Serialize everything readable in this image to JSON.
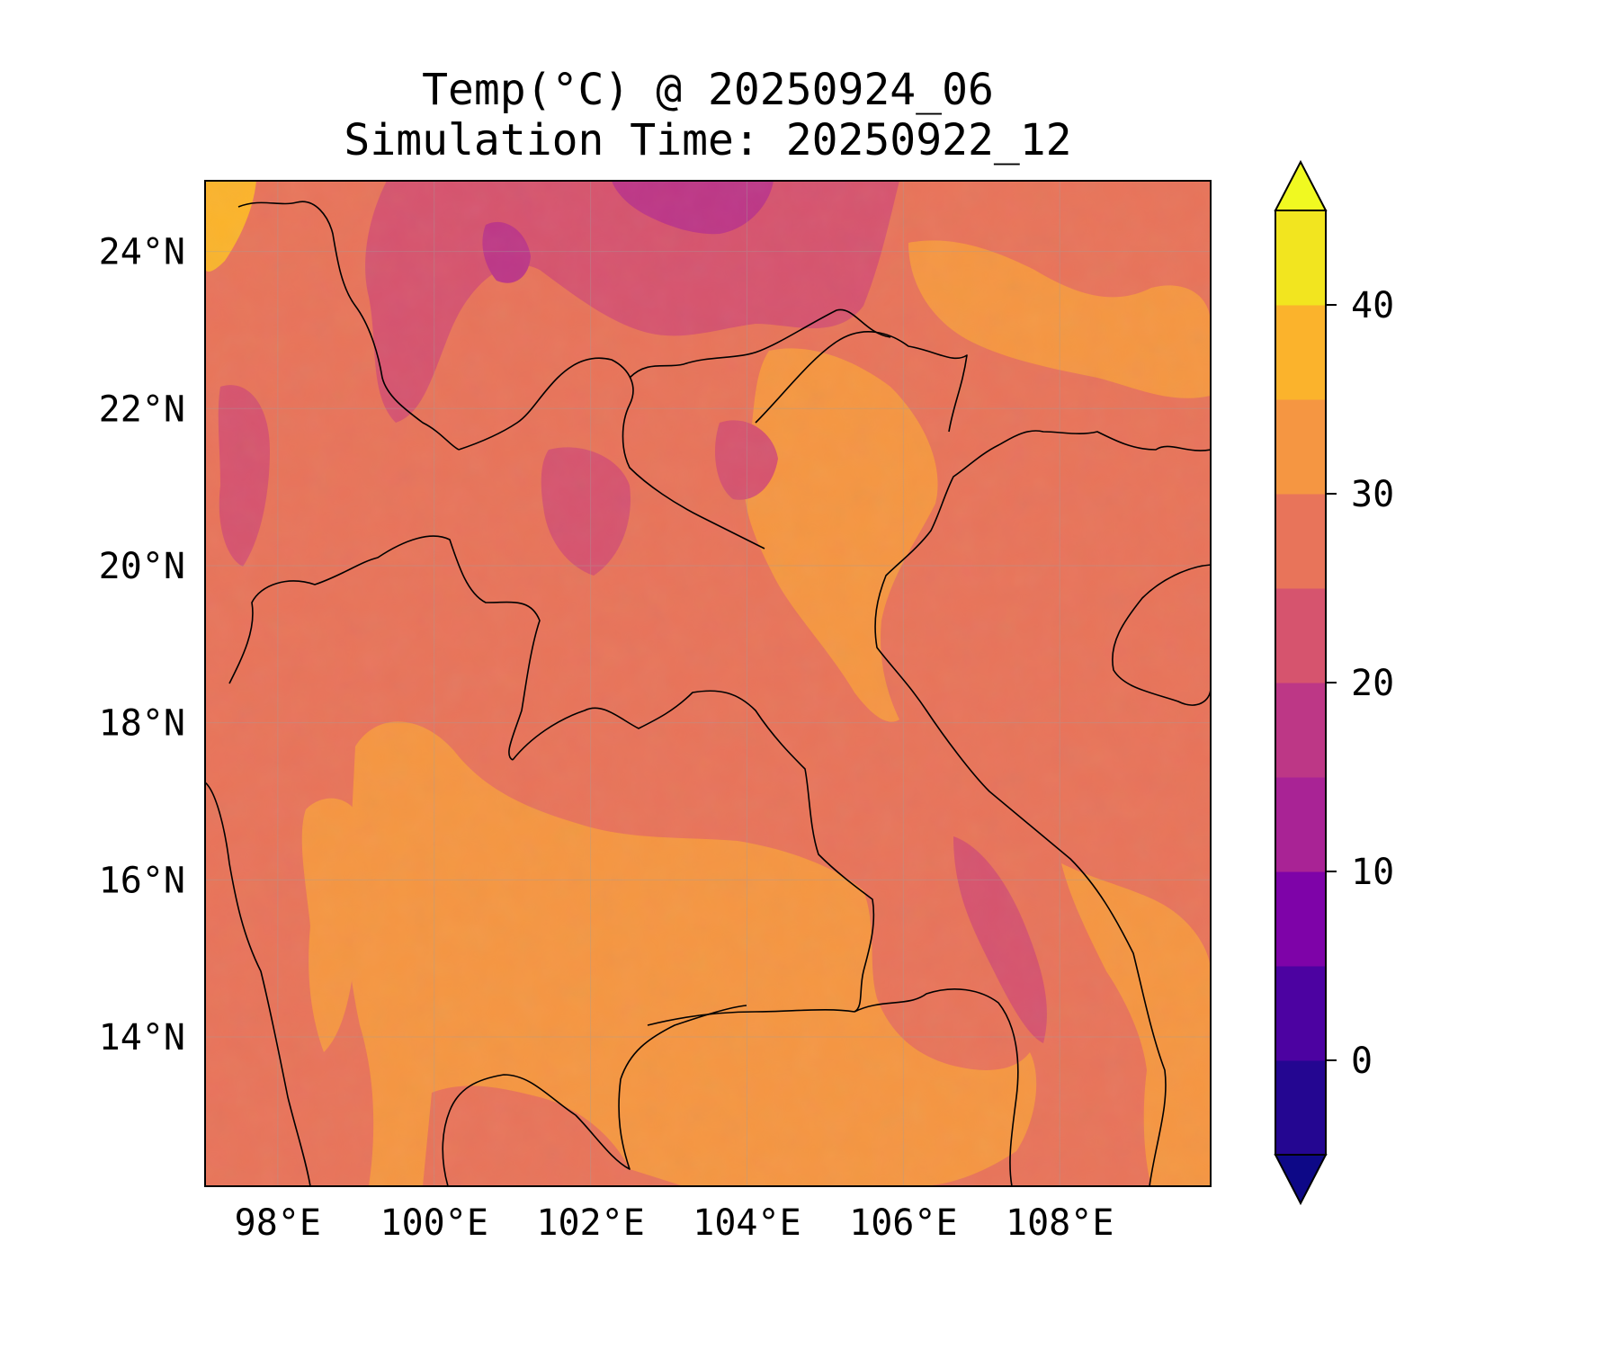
{
  "title": {
    "line1": "Temp(°C) @ 20250924_06",
    "line2": "Simulation Time: 20250922_12"
  },
  "map": {
    "type": "filled-contour",
    "variable": "Temp(°C)",
    "extent": {
      "lon_min": 97.07,
      "lon_max": 109.93,
      "lat_min": 12.1,
      "lat_max": 24.9
    },
    "gridlines": true,
    "longitude_ticks": [
      {
        "lon": 98,
        "label": "98°E"
      },
      {
        "lon": 100,
        "label": "100°E"
      },
      {
        "lon": 102,
        "label": "102°E"
      },
      {
        "lon": 104,
        "label": "104°E"
      },
      {
        "lon": 106,
        "label": "106°E"
      },
      {
        "lon": 108,
        "label": "108°E"
      }
    ],
    "latitude_ticks": [
      {
        "lat": 24,
        "label": "24°N"
      },
      {
        "lat": 22,
        "label": "22°N"
      },
      {
        "lat": 20,
        "label": "20°N"
      },
      {
        "lat": 18,
        "label": "18°N"
      },
      {
        "lat": 16,
        "label": "16°N"
      },
      {
        "lat": 14,
        "label": "14°N"
      }
    ],
    "dominant_colors": {
      "background_25_30": "#e8745a",
      "warm_30_35": "#f59642",
      "cool_20_25": "#d6546e",
      "cold_15_20": "#bd3786",
      "coast_line": "#000000"
    }
  },
  "colorbar": {
    "min": -5,
    "max": 45,
    "step": 5,
    "extend": "both",
    "ticks": [
      {
        "value": 0,
        "label": "0"
      },
      {
        "value": 10,
        "label": "10"
      },
      {
        "value": 20,
        "label": "20"
      },
      {
        "value": 30,
        "label": "30"
      },
      {
        "value": 40,
        "label": "40"
      }
    ],
    "bands": [
      {
        "from": -5,
        "to": 0,
        "color": "#240691"
      },
      {
        "from": 0,
        "to": 5,
        "color": "#4c02a1"
      },
      {
        "from": 5,
        "to": 10,
        "color": "#7e03a8"
      },
      {
        "from": 10,
        "to": 15,
        "color": "#a92395"
      },
      {
        "from": 15,
        "to": 20,
        "color": "#bd3786"
      },
      {
        "from": 20,
        "to": 25,
        "color": "#d6546e"
      },
      {
        "from": 25,
        "to": 30,
        "color": "#e8745a"
      },
      {
        "from": 30,
        "to": 35,
        "color": "#f59642"
      },
      {
        "from": 35,
        "to": 40,
        "color": "#fbb32c"
      },
      {
        "from": 40,
        "to": 45,
        "color": "#f2e51f"
      }
    ],
    "under_color": "#0d0887",
    "over_color": "#f0f921"
  }
}
